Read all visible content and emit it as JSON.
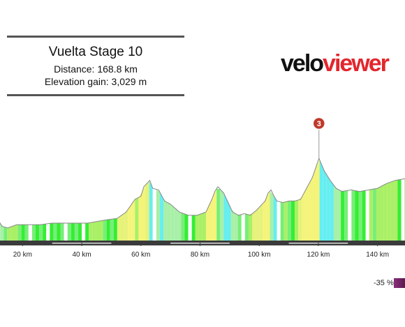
{
  "header": {
    "title": "Vuelta Stage 10",
    "distance_line": "Distance: 168.8 km",
    "elevation_line": "Elevation gain: 3,029 m"
  },
  "logo": {
    "part1": "velo",
    "part2": "viewer"
  },
  "legend": {
    "label": "-35 %"
  },
  "chart_data": {
    "type": "area",
    "title": "Vuelta Stage 10",
    "x_unit": "km",
    "xlim": [
      10,
      150
    ],
    "x_ticks": [
      20,
      40,
      60,
      80,
      100,
      120,
      140
    ],
    "x_tick_labels": [
      "20 km",
      "40 km",
      "60 km",
      "80 km",
      "100 km",
      "120 km",
      "140 km"
    ],
    "grid": false,
    "legend_position": "bottom-right",
    "marker": {
      "label": "3",
      "km": 120.2,
      "color": "#c0392b"
    },
    "profile_relative": [
      [
        10,
        0.12
      ],
      [
        11.5,
        0.14
      ],
      [
        13,
        0.09
      ],
      [
        15,
        0.08
      ],
      [
        18,
        0.1
      ],
      [
        22,
        0.1
      ],
      [
        26,
        0.1
      ],
      [
        30,
        0.11
      ],
      [
        34,
        0.11
      ],
      [
        38,
        0.11
      ],
      [
        42,
        0.11
      ],
      [
        45,
        0.12
      ],
      [
        48,
        0.13
      ],
      [
        52,
        0.14
      ],
      [
        55,
        0.18
      ],
      [
        58,
        0.26
      ],
      [
        60,
        0.28
      ],
      [
        61,
        0.34
      ],
      [
        63,
        0.38
      ],
      [
        64,
        0.33
      ],
      [
        66,
        0.32
      ],
      [
        68,
        0.25
      ],
      [
        70,
        0.23
      ],
      [
        73,
        0.18
      ],
      [
        76,
        0.16
      ],
      [
        79,
        0.16
      ],
      [
        82,
        0.18
      ],
      [
        84,
        0.26
      ],
      [
        85,
        0.31
      ],
      [
        86,
        0.34
      ],
      [
        87,
        0.32
      ],
      [
        88,
        0.3
      ],
      [
        89,
        0.26
      ],
      [
        91,
        0.18
      ],
      [
        93,
        0.16
      ],
      [
        95,
        0.17
      ],
      [
        97,
        0.16
      ],
      [
        99,
        0.19
      ],
      [
        101,
        0.23
      ],
      [
        102,
        0.25
      ],
      [
        103,
        0.3
      ],
      [
        104,
        0.32
      ],
      [
        105,
        0.28
      ],
      [
        106,
        0.25
      ],
      [
        108,
        0.24
      ],
      [
        110,
        0.25
      ],
      [
        112,
        0.25
      ],
      [
        114,
        0.26
      ],
      [
        116,
        0.33
      ],
      [
        118,
        0.4
      ],
      [
        120.2,
        0.52
      ],
      [
        122,
        0.44
      ],
      [
        124,
        0.38
      ],
      [
        126,
        0.33
      ],
      [
        128,
        0.31
      ],
      [
        131,
        0.32
      ],
      [
        134,
        0.31
      ],
      [
        137,
        0.32
      ],
      [
        140,
        0.33
      ],
      [
        143,
        0.36
      ],
      [
        146,
        0.38
      ],
      [
        149,
        0.39
      ],
      [
        150,
        0.39
      ]
    ],
    "gradient_colors": [
      "#ffffff",
      "#77ee77",
      "#33ee33",
      "#aaf066",
      "#e6f27a",
      "#f4f47a",
      "#66eef0",
      "#a8f0a8"
    ]
  }
}
